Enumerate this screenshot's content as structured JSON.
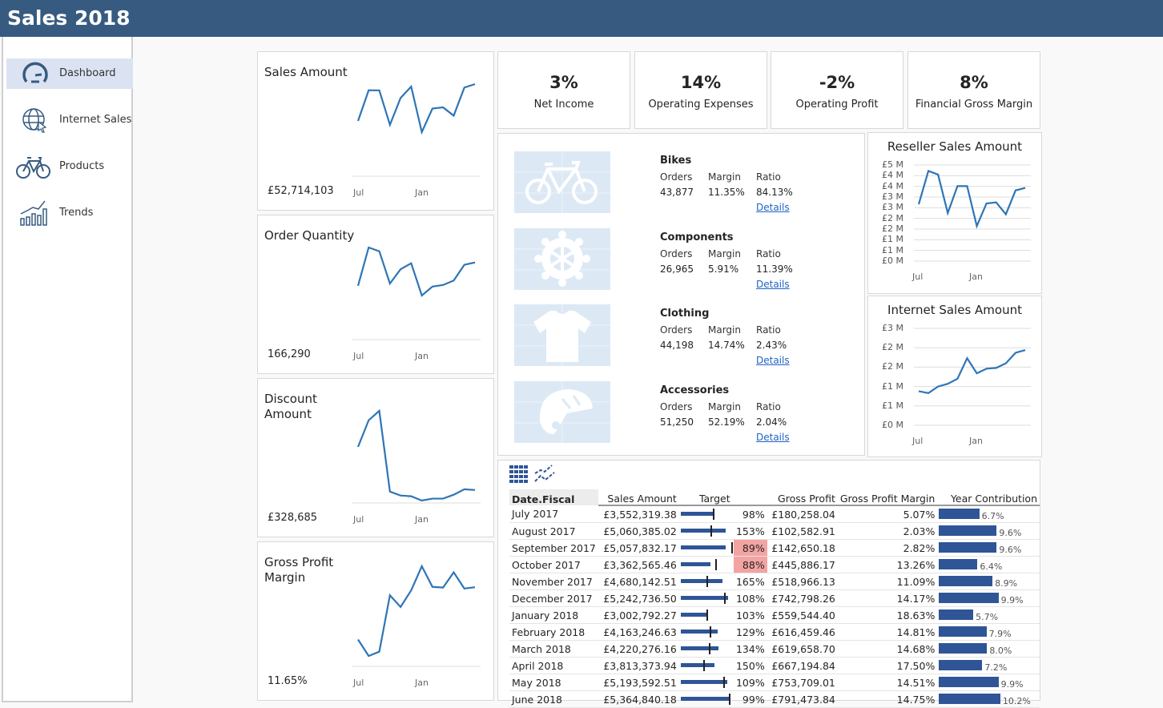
{
  "app": {
    "title": "Sales 2018"
  },
  "sidebar": {
    "items": [
      {
        "label": "Dashboard",
        "icon": "dashboard-gauge-icon",
        "selected": true
      },
      {
        "label": "Internet Sales",
        "icon": "globe-cursor-icon"
      },
      {
        "label": "Products",
        "icon": "bicycle-icon"
      },
      {
        "label": "Trends",
        "icon": "trend-chart-icon"
      }
    ]
  },
  "accent": "#2e75b6",
  "bar_color": "#2f5597",
  "highlight": "#f4a3a3",
  "sparks": [
    {
      "title": "Sales Amount",
      "value": "£52,714,103",
      "x_labels": [
        "Jul",
        "Jan"
      ],
      "values": [
        3552319,
        5060385,
        5057832,
        3362565,
        4680142,
        5242736,
        3002792,
        4163246,
        4220276,
        3813373,
        5193592,
        5364840
      ]
    },
    {
      "title": "Order Quantity",
      "value": "166,290",
      "x_labels": [
        "Jul",
        "Jan"
      ],
      "values": [
        11230,
        19075,
        18305,
        11690,
        14610,
        15845,
        9230,
        11075,
        11385,
        12305,
        15535,
        16000
      ]
    },
    {
      "title": "Discount Amount",
      "value": "£328,685",
      "x_labels": [
        "Jul",
        "Jan"
      ],
      "values": [
        63900,
        95400,
        106500,
        11100,
        6500,
        5600,
        500,
        2800,
        2800,
        7400,
        13900,
        13000
      ]
    },
    {
      "title": "Gross Profit Margin",
      "value": "11.65%",
      "x_labels": [
        "Jul",
        "Jan"
      ],
      "values": [
        5.07,
        2.03,
        2.82,
        13.26,
        11.09,
        14.17,
        18.63,
        14.81,
        14.68,
        17.5,
        14.51,
        14.75
      ]
    }
  ],
  "kpis": [
    {
      "value": "3%",
      "label": "Net Income"
    },
    {
      "value": "14%",
      "label": "Operating Expenses"
    },
    {
      "value": "-2%",
      "label": "Operating Profit"
    },
    {
      "value": "8%",
      "label": "Financial Gross Margin"
    }
  ],
  "products": [
    {
      "name": "Bikes",
      "icon": "bicycle-icon",
      "orders": "43,877",
      "margin": "11.35%",
      "ratio": "84.13%"
    },
    {
      "name": "Components",
      "icon": "gear-icon",
      "orders": "26,965",
      "margin": "5.91%",
      "ratio": "11.39%"
    },
    {
      "name": "Clothing",
      "icon": "tshirt-icon",
      "orders": "44,198",
      "margin": "14.74%",
      "ratio": "2.43%"
    },
    {
      "name": "Accessories",
      "icon": "helmet-icon",
      "orders": "51,250",
      "margin": "52.19%",
      "ratio": "2.04%"
    }
  ],
  "product_labels": {
    "orders": "Orders",
    "margin": "Margin",
    "ratio": "Ratio",
    "details": "Details"
  },
  "chart_data": [
    {
      "type": "line",
      "title": "Reseller Sales Amount",
      "x_labels": [
        "Jul",
        "Jan"
      ],
      "y_tick_labels": [
        "£0 M",
        "£1 M",
        "£1 M",
        "£2 M",
        "£2 M",
        "£3 M",
        "£3 M",
        "£4 M",
        "£4 M",
        "£5 M"
      ],
      "ylim": [
        0,
        4500000
      ],
      "grid": true,
      "values": [
        2660000,
        4220000,
        4050000,
        2250000,
        3510000,
        3510000,
        1640000,
        2700000,
        2750000,
        2190000,
        3310000,
        3430000
      ]
    },
    {
      "type": "line",
      "title": "Internet Sales Amount",
      "x_labels": [
        "Jul",
        "Jan"
      ],
      "y_tick_labels": [
        "£0 M",
        "£1 M",
        "£1 M",
        "£2 M",
        "£2 M",
        "£3 M"
      ],
      "ylim": [
        0,
        2500000
      ],
      "grid": true,
      "values": [
        880000,
        830000,
        1000000,
        1070000,
        1200000,
        1730000,
        1340000,
        1460000,
        1480000,
        1600000,
        1870000,
        1940000
      ]
    }
  ],
  "table": {
    "icons": [
      "table-grid-icon",
      "line-chart-toggle-icon"
    ],
    "headers": [
      "Date.Fiscal",
      "Sales Amount",
      "Target",
      "Gross Profit",
      "Gross Profit Margin",
      "Year Contribution"
    ],
    "rows": [
      {
        "date": "July 2017",
        "sales": "£3,552,319.38",
        "sales_m": 3.552,
        "target": "98%",
        "target_pct": 98,
        "gp": "£180,258.04",
        "gpm": "5.07%",
        "yc": "6.7%",
        "yc_pct": 6.7
      },
      {
        "date": "August 2017",
        "sales": "£5,060,385.02",
        "sales_m": 5.06,
        "target": "153%",
        "target_pct": 153,
        "gp": "£102,582.91",
        "gpm": "2.03%",
        "yc": "9.6%",
        "yc_pct": 9.6
      },
      {
        "date": "September 2017",
        "sales": "£5,057,832.17",
        "sales_m": 5.058,
        "target": "89%",
        "target_pct": 89,
        "gp": "£142,650.18",
        "gpm": "2.82%",
        "yc": "9.6%",
        "yc_pct": 9.6
      },
      {
        "date": "October 2017",
        "sales": "£3,362,565.46",
        "sales_m": 3.363,
        "target": "88%",
        "target_pct": 88,
        "gp": "£445,886.17",
        "gpm": "13.26%",
        "yc": "6.4%",
        "yc_pct": 6.4
      },
      {
        "date": "November 2017",
        "sales": "£4,680,142.51",
        "sales_m": 4.68,
        "target": "165%",
        "target_pct": 165,
        "gp": "£518,966.13",
        "gpm": "11.09%",
        "yc": "8.9%",
        "yc_pct": 8.9
      },
      {
        "date": "December 2017",
        "sales": "£5,242,736.50",
        "sales_m": 5.243,
        "target": "108%",
        "target_pct": 108,
        "gp": "£742,798.26",
        "gpm": "14.17%",
        "yc": "9.9%",
        "yc_pct": 9.9
      },
      {
        "date": "January 2018",
        "sales": "£3,002,792.27",
        "sales_m": 3.003,
        "target": "103%",
        "target_pct": 103,
        "gp": "£559,544.40",
        "gpm": "18.63%",
        "yc": "5.7%",
        "yc_pct": 5.7
      },
      {
        "date": "February 2018",
        "sales": "£4,163,246.63",
        "sales_m": 4.163,
        "target": "129%",
        "target_pct": 129,
        "gp": "£616,459.46",
        "gpm": "14.81%",
        "yc": "7.9%",
        "yc_pct": 7.9
      },
      {
        "date": "March 2018",
        "sales": "£4,220,276.16",
        "sales_m": 4.22,
        "target": "134%",
        "target_pct": 134,
        "gp": "£619,658.70",
        "gpm": "14.68%",
        "yc": "8.0%",
        "yc_pct": 8.0
      },
      {
        "date": "April 2018",
        "sales": "£3,813,373.94",
        "sales_m": 3.813,
        "target": "150%",
        "target_pct": 150,
        "gp": "£667,194.84",
        "gpm": "17.50%",
        "yc": "7.2%",
        "yc_pct": 7.2
      },
      {
        "date": "May 2018",
        "sales": "£5,193,592.51",
        "sales_m": 5.194,
        "target": "109%",
        "target_pct": 109,
        "gp": "£753,709.01",
        "gpm": "14.51%",
        "yc": "9.9%",
        "yc_pct": 9.9
      },
      {
        "date": "June 2018",
        "sales": "£5,364,840.18",
        "sales_m": 5.365,
        "target": "99%",
        "target_pct": 99,
        "gp": "£791,473.84",
        "gpm": "14.75%",
        "yc": "10.2%",
        "yc_pct": 10.2
      }
    ]
  }
}
